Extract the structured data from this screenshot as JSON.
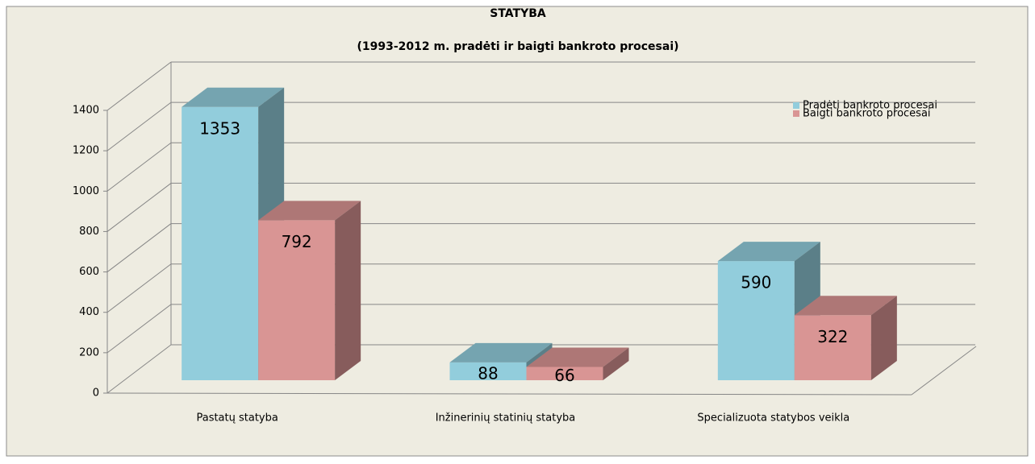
{
  "chart_data": {
    "type": "bar3d",
    "title": "STATYBA",
    "subtitle": "(1993-2012 m. pradėti ir baigti bankroto procesai)",
    "categories": [
      "Pastatų statyba",
      "Inžinerinių statinių statyba",
      "Specializuota statybos veikla"
    ],
    "series": [
      {
        "name": "Pradėti bankroto procesai",
        "color": "#92cddc",
        "values": [
          1353,
          88,
          590
        ]
      },
      {
        "name": "Baigti bankroto procesai",
        "color": "#d99594",
        "values": [
          792,
          66,
          322
        ]
      }
    ],
    "ylim": [
      0,
      1400
    ],
    "yticks": [
      0,
      200,
      400,
      600,
      800,
      1000,
      1200,
      1400
    ],
    "grid": true,
    "legend": "top-right"
  }
}
